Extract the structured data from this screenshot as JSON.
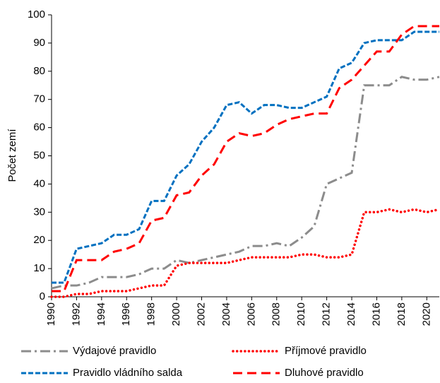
{
  "chart_data": {
    "type": "line",
    "ylabel": "Počet zemí",
    "x": [
      1990,
      1991,
      1992,
      1993,
      1994,
      1995,
      1996,
      1997,
      1998,
      1999,
      2000,
      2001,
      2002,
      2003,
      2004,
      2005,
      2006,
      2007,
      2008,
      2009,
      2010,
      2011,
      2012,
      2013,
      2014,
      2015,
      2016,
      2017,
      2018,
      2019,
      2020,
      2021
    ],
    "series": [
      {
        "name": "Výdajové pravidlo",
        "color": "#8c8c8c",
        "style": "dashdot",
        "values": [
          3,
          4,
          4,
          5,
          7,
          7,
          7,
          8,
          10,
          10,
          13,
          12,
          13,
          14,
          15,
          16,
          18,
          18,
          19,
          18,
          21,
          25,
          40,
          42,
          44,
          75,
          75,
          75,
          78,
          77,
          77,
          78
        ]
      },
      {
        "name": "Příjmové pravidlo",
        "color": "#ff0000",
        "style": "dotted",
        "values": [
          0,
          0,
          1,
          1,
          2,
          2,
          2,
          3,
          4,
          4,
          11,
          12,
          12,
          12,
          12,
          13,
          14,
          14,
          14,
          14,
          15,
          15,
          14,
          14,
          15,
          30,
          30,
          31,
          30,
          31,
          30,
          31
        ]
      },
      {
        "name": "Pravidlo vládního salda",
        "color": "#0070c0",
        "style": "dashed",
        "values": [
          5,
          5,
          17,
          18,
          19,
          22,
          22,
          24,
          34,
          34,
          43,
          47,
          55,
          60,
          68,
          69,
          65,
          68,
          68,
          67,
          67,
          69,
          71,
          81,
          83,
          90,
          91,
          91,
          91,
          94,
          94,
          94
        ]
      },
      {
        "name": "Dluhové pravidlo",
        "color": "#ff0000",
        "style": "longdash",
        "values": [
          2,
          2,
          13,
          13,
          13,
          16,
          17,
          19,
          27,
          28,
          36,
          37,
          43,
          47,
          55,
          58,
          57,
          58,
          61,
          63,
          64,
          65,
          65,
          74,
          77,
          82,
          87,
          87,
          93,
          96,
          96,
          96
        ]
      }
    ],
    "xlim": [
      1990,
      2021
    ],
    "xticks": [
      1990,
      1992,
      1994,
      1996,
      1998,
      2000,
      2002,
      2004,
      2006,
      2008,
      2010,
      2012,
      2014,
      2016,
      2018,
      2020
    ],
    "ylim": [
      0,
      100
    ],
    "yticks": [
      0,
      10,
      20,
      30,
      40,
      50,
      60,
      70,
      80,
      90,
      100
    ],
    "grid": false,
    "legend": "bottom"
  }
}
